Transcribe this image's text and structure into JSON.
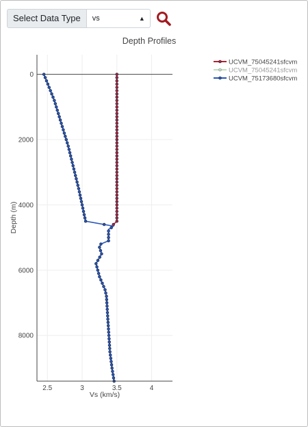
{
  "controls": {
    "type_label": "Select Data Type",
    "type_value": "vs",
    "type_arrows": "⬍",
    "search_icon": "search-icon"
  },
  "colors": {
    "series1": "#b22231",
    "series2": "#8fbf87",
    "series3": "#2856b8",
    "marker_outline": "#1c2a4a",
    "grid": "#eeeeee",
    "zero_line": "#444444",
    "search": "#a31b21"
  },
  "chart_data": {
    "type": "line",
    "title": "Depth Profiles",
    "xlabel": "Vs (km/s)",
    "ylabel": "Depth (m)",
    "xlim": [
      2.35,
      4.3
    ],
    "ylim": [
      9400,
      -600
    ],
    "y_reversed": true,
    "x_ticks": [
      "2.5",
      "3",
      "3.5",
      "4"
    ],
    "y_ticks": [
      "0",
      "2000",
      "4000",
      "6000",
      "8000"
    ],
    "grid": true,
    "legend_position": "top-right",
    "series": [
      {
        "name": "UCVM_75045241sfcvm",
        "color": "#b22231",
        "legend_opacity": 1,
        "marker_step": 100,
        "points": [
          [
            3.5,
            0
          ],
          [
            3.5,
            4500
          ],
          [
            3.45,
            4600
          ]
        ]
      },
      {
        "name": "UCVM_75045241sfcvm",
        "color": "#8fbf87",
        "legend_opacity": 0.55,
        "marker_step": 0,
        "points": []
      },
      {
        "name": "UCVM_75173680sfcvm",
        "color": "#2856b8",
        "legend_opacity": 1,
        "marker_step": 100,
        "points": [
          [
            2.45,
            0
          ],
          [
            2.6,
            800
          ],
          [
            2.8,
            2200
          ],
          [
            2.95,
            3500
          ],
          [
            3.05,
            4500
          ],
          [
            3.45,
            4650
          ],
          [
            3.42,
            4700
          ],
          [
            3.38,
            4750
          ],
          [
            3.38,
            5100
          ],
          [
            3.27,
            5200
          ],
          [
            3.25,
            5300
          ],
          [
            3.28,
            5500
          ],
          [
            3.2,
            5800
          ],
          [
            3.25,
            6200
          ],
          [
            3.33,
            6600
          ],
          [
            3.35,
            6800
          ],
          [
            3.37,
            7500
          ],
          [
            3.4,
            8500
          ],
          [
            3.43,
            9000
          ],
          [
            3.46,
            9400
          ]
        ]
      }
    ]
  }
}
